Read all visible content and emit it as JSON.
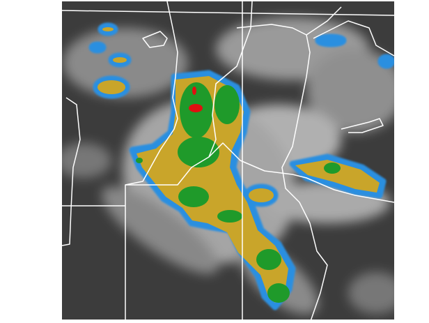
{
  "image": {
    "kind": "infrared satellite image with color-enhanced cloud tops",
    "colors": {
      "background": "#3c3c3c",
      "cloud": "#c8c8c8",
      "blue_level": "#2a8fe0",
      "yellow_level": "#c9a52a",
      "green_level": "#1f9a2a",
      "red_level": "#e01010",
      "borders": "#ffffff"
    }
  }
}
